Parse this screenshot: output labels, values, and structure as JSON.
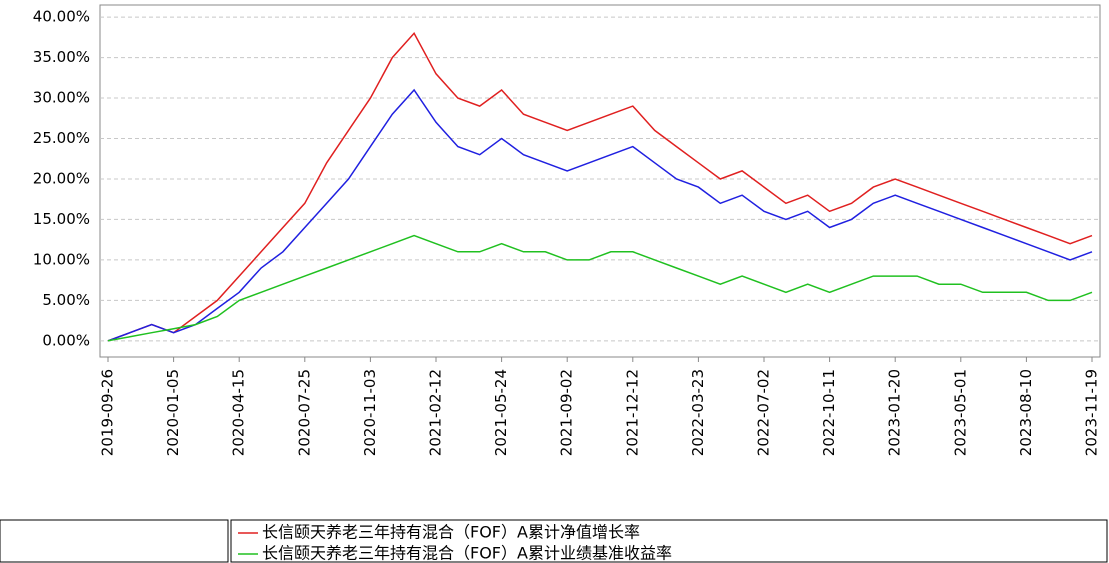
{
  "chart_data": {
    "type": "line",
    "categories": [
      "2019-09-26",
      null,
      null,
      "2020-01-05",
      null,
      null,
      "2020-04-15",
      null,
      null,
      "2020-07-25",
      null,
      null,
      "2020-11-03",
      null,
      null,
      "2021-02-12",
      null,
      null,
      "2021-05-24",
      null,
      null,
      "2021-09-02",
      null,
      null,
      "2021-12-12",
      null,
      null,
      "2022-03-23",
      null,
      null,
      "2022-07-02",
      null,
      null,
      "2022-10-11",
      null,
      null,
      "2023-01-20",
      null,
      null,
      "2023-05-01",
      null,
      null,
      "2023-08-10",
      null,
      null,
      "2023-11-19"
    ],
    "series": [
      {
        "name": "长信颐天养老三年持有混合（FOF）A累计净值增长率",
        "color": "#e02020",
        "values": [
          0,
          1,
          2,
          1,
          3,
          5,
          8,
          11,
          14,
          17,
          22,
          26,
          30,
          35,
          38,
          33,
          30,
          29,
          31,
          28,
          27,
          26,
          27,
          28,
          29,
          26,
          24,
          22,
          20,
          21,
          19,
          17,
          18,
          16,
          17,
          19,
          20,
          19,
          18,
          17,
          16,
          15,
          14,
          13,
          12,
          13
        ]
      },
      {
        "color": "#2020e0",
        "values": [
          0,
          1,
          2,
          1,
          2,
          4,
          6,
          9,
          11,
          14,
          17,
          20,
          24,
          28,
          31,
          27,
          24,
          23,
          25,
          23,
          22,
          21,
          22,
          23,
          24,
          22,
          20,
          19,
          17,
          18,
          16,
          15,
          16,
          14,
          15,
          17,
          18,
          17,
          16,
          15,
          14,
          13,
          12,
          11,
          10,
          11
        ]
      },
      {
        "name": "长信颐天养老三年持有混合（FOF）A累计业绩基准收益率",
        "color": "#20c020",
        "values": [
          0,
          0.5,
          1,
          1.5,
          2,
          3,
          5,
          6,
          7,
          8,
          9,
          10,
          11,
          12,
          13,
          12,
          11,
          11,
          12,
          11,
          11,
          10,
          10,
          11,
          11,
          10,
          9,
          8,
          7,
          8,
          7,
          6,
          7,
          6,
          7,
          8,
          8,
          8,
          7,
          7,
          6,
          6,
          6,
          5,
          5,
          6
        ]
      }
    ],
    "ylim": [
      -2,
      41.5
    ],
    "yticks": [
      {
        "value": 0,
        "label": "0.00%"
      },
      {
        "value": 5,
        "label": "5.00%"
      },
      {
        "value": 10,
        "label": "10.00%"
      },
      {
        "value": 15,
        "label": "15.00%"
      },
      {
        "value": 20,
        "label": "20.00%"
      },
      {
        "value": 25,
        "label": "25.00%"
      },
      {
        "value": 30,
        "label": "30.00%"
      },
      {
        "value": 35,
        "label": "35.00%"
      },
      {
        "value": 40,
        "label": "40.00%"
      }
    ],
    "grid": true
  }
}
